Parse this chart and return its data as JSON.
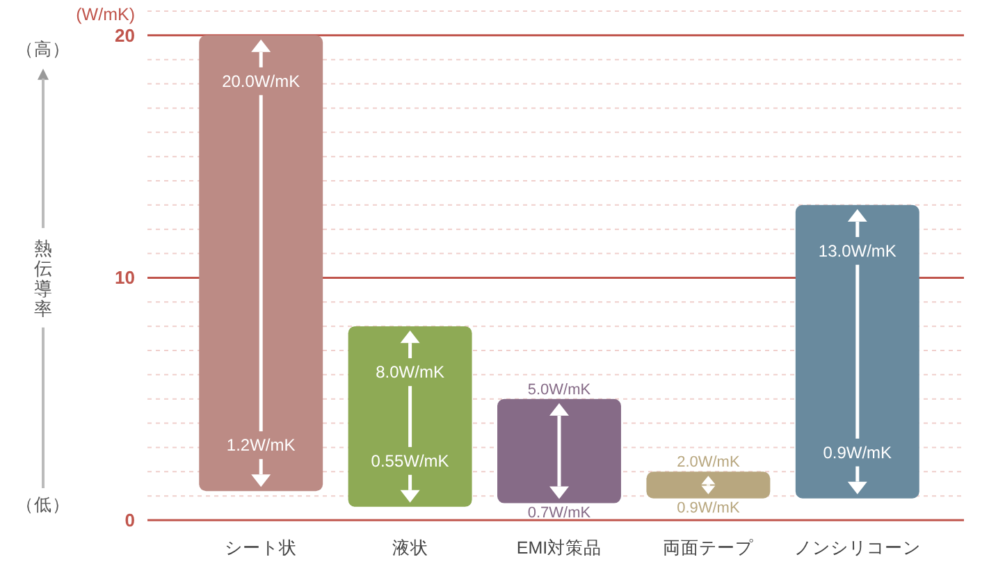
{
  "chart_data": {
    "type": "bar",
    "categories": [
      "シート状",
      "液状",
      "EMI対策品",
      "両面テープ",
      "ノンシリコーン"
    ],
    "base": [
      1.2,
      0.55,
      0.7,
      0.9,
      0.9
    ],
    "values": [
      18.8,
      7.45,
      4.3,
      1.1,
      12.1
    ],
    "colors": [
      "#bc8b85",
      "#8eaa55",
      "#866b87",
      "#b8a77f",
      "#698a9e"
    ],
    "ylabel": "熱伝導率",
    "annotations": [
      "(W/mK)",
      "（高）",
      "（低）",
      {
        "text": "20.0W/mK",
        "x": "シート状",
        "y": 20.0
      },
      {
        "text": "1.2W/mK",
        "x": "シート状",
        "y": 1.2
      },
      {
        "text": "8.0W/mK",
        "x": "液状",
        "y": 8.0
      },
      {
        "text": "0.55W/mK",
        "x": "液状",
        "y": 0.55
      },
      {
        "text": "5.0W/mK",
        "x": "EMI対策品",
        "y": 5.0
      },
      {
        "text": "0.7W/mK",
        "x": "EMI対策品",
        "y": 0.7
      },
      {
        "text": "2.0W/mK",
        "x": "両面テープ",
        "y": 2.0
      },
      {
        "text": "0.9W/mK",
        "x": "両面テープ",
        "y": 0.9
      },
      {
        "text": "13.0W/mK",
        "x": "ノンシリコーン",
        "y": 13.0
      },
      {
        "text": "0.9W/mK",
        "x": "ノンシリコーン",
        "y": 0.9
      }
    ],
    "ylim": [
      0,
      21
    ],
    "yticks": [
      0,
      {
        "value": 1,
        "label": null
      },
      {
        "value": 2,
        "label": null
      },
      {
        "value": 3,
        "label": null
      },
      {
        "value": 4,
        "label": null
      },
      {
        "value": 5,
        "label": null
      },
      {
        "value": 6,
        "label": null
      },
      {
        "value": 7,
        "label": null
      },
      {
        "value": 8,
        "label": null
      },
      {
        "value": 9,
        "label": null
      },
      10,
      {
        "value": 11,
        "label": null
      },
      {
        "value": 12,
        "label": null
      },
      {
        "value": 13,
        "label": null
      },
      {
        "value": 14,
        "label": null
      },
      {
        "value": 15,
        "label": null
      },
      {
        "value": 16,
        "label": null
      },
      {
        "value": 17,
        "label": null
      },
      {
        "value": 18,
        "label": null
      },
      {
        "value": 19,
        "label": null
      },
      20,
      {
        "value": 21,
        "label": null
      }
    ],
    "grid": "y"
  }
}
